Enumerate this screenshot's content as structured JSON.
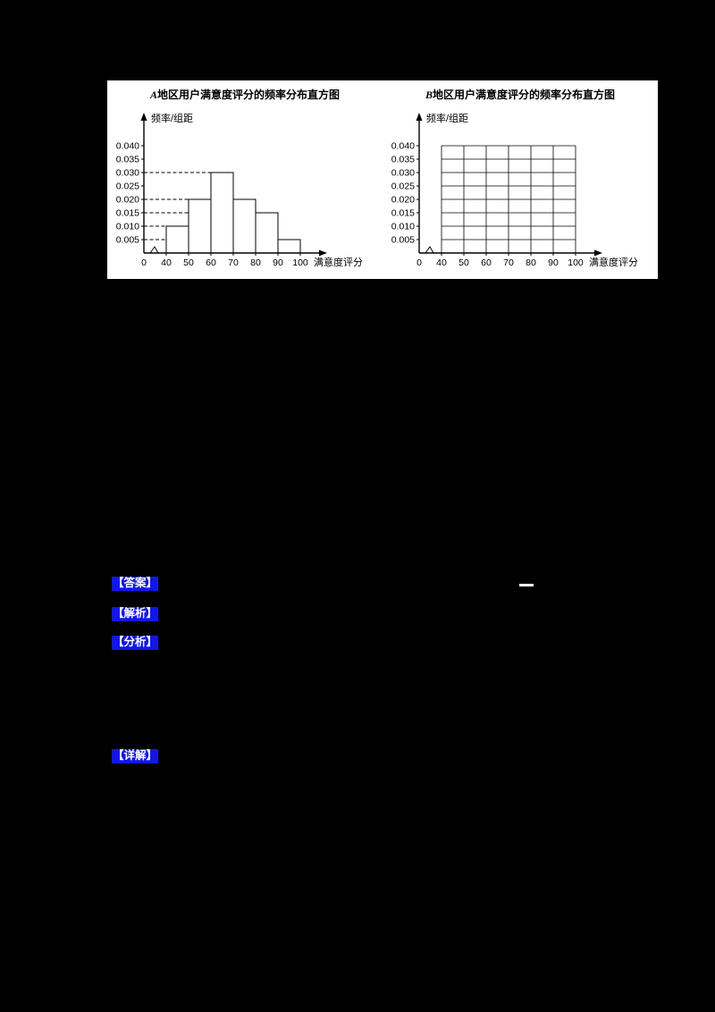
{
  "colors": {
    "page_background": "#000000",
    "panel_background": "#ffffff",
    "highlight_blue": "#1216ee",
    "chart_ink": "#000000"
  },
  "chart_data": [
    {
      "type": "bar",
      "subtype": "frequency-histogram",
      "title": "A地区用户满意度评分的频率分布直方图",
      "ylabel": "频率/组距",
      "xlabel": "满意度评分",
      "categories": [
        "[40,50)",
        "[50,60)",
        "[60,70)",
        "[70,80)",
        "[80,90)",
        "[90,100)"
      ],
      "values": [
        0.01,
        0.02,
        0.03,
        0.02,
        0.015,
        0.005
      ],
      "bin_start": 40,
      "bin_width": 10,
      "xticks": [
        0,
        40,
        50,
        60,
        70,
        80,
        90,
        100
      ],
      "yticks": [
        0.005,
        0.01,
        0.015,
        0.02,
        0.025,
        0.03,
        0.035,
        0.04
      ],
      "ylim": [
        0,
        0.04
      ],
      "grid": false,
      "dashed_guides": true,
      "axis_break": true,
      "legend": "none"
    },
    {
      "type": "bar",
      "subtype": "frequency-histogram-empty-grid",
      "title": "B地区用户满意度评分的频率分布直方图",
      "ylabel": "频率/组距",
      "xlabel": "满意度评分",
      "categories": [
        "[40,50)",
        "[50,60)",
        "[60,70)",
        "[70,80)",
        "[80,90)",
        "[90,100)"
      ],
      "values": [],
      "bin_start": 40,
      "bin_width": 10,
      "xticks": [
        0,
        40,
        50,
        60,
        70,
        80,
        90,
        100
      ],
      "yticks": [
        0.005,
        0.01,
        0.015,
        0.02,
        0.025,
        0.03,
        0.035,
        0.04
      ],
      "ylim": [
        0,
        0.04
      ],
      "grid": true,
      "dashed_guides": false,
      "axis_break": true,
      "legend": "none"
    }
  ],
  "solution": {
    "labels": [
      "【答案】",
      "【解析】",
      "【分析】",
      "【详解】"
    ]
  }
}
